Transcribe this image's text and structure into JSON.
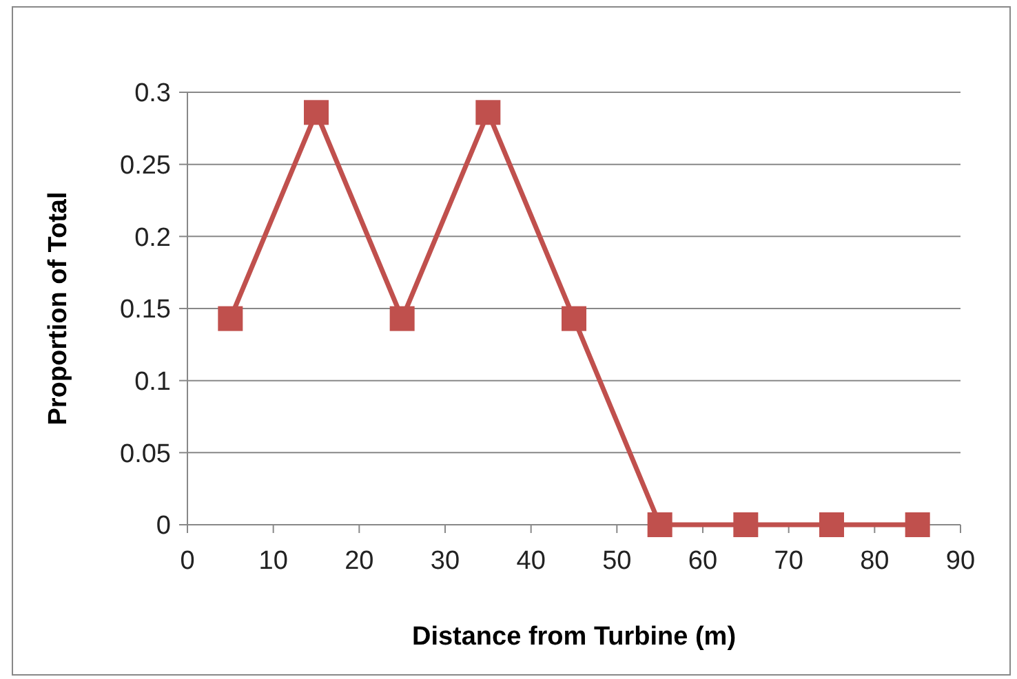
{
  "chart_data": {
    "type": "line",
    "xlabel": "Distance from Turbine (m)",
    "ylabel": "Proportion of Total",
    "x": [
      5,
      15,
      25,
      35,
      45,
      55,
      65,
      75,
      85
    ],
    "series": [
      {
        "color": "#c0504d",
        "values": [
          0.143,
          0.286,
          0.143,
          0.286,
          0.143,
          0,
          0,
          0,
          0
        ]
      }
    ],
    "xlim": [
      0,
      90
    ],
    "xticks": [
      0,
      10,
      20,
      30,
      40,
      50,
      60,
      70,
      80,
      90
    ],
    "ylim": [
      0,
      0.3
    ],
    "yticks": [
      0,
      0.05,
      0.1,
      0.15,
      0.2,
      0.25,
      0.3
    ],
    "grid": "y",
    "marker": "square",
    "line_style": "solid"
  }
}
